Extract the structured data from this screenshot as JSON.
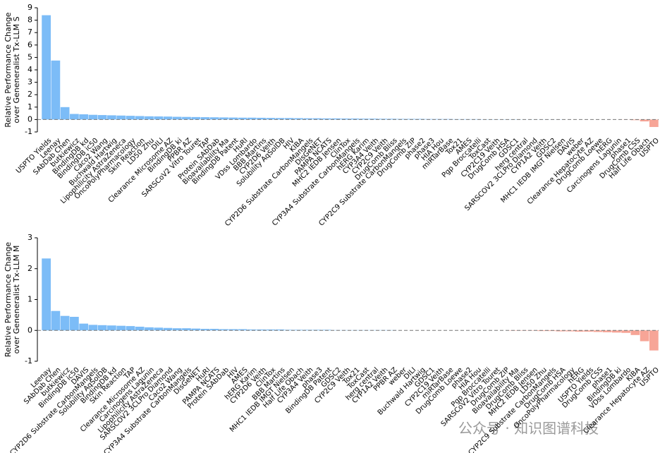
{
  "chart_data": [
    {
      "type": "bar",
      "ylabel": [
        "Relative Performance Change",
        "over Geneneralist Tx-LLM S"
      ],
      "categories": [
        "USPTO Yields",
        "Leenay",
        "SAbDab Chen",
        "butkiewicz",
        "BindingDB kd",
        "BindingDB ic50",
        "Caco2 Wang",
        "Buchwald Hartwig",
        "Lipophilicity AstraZeneca",
        "OncoPolyPharmacology",
        "Skin Reaction",
        "LD50 Zhu",
        "DILI",
        "Clearance Microsome AZ",
        "BindingDB ki",
        "PPBR AZ",
        "SARSCoV2 Vitro Touret",
        "TAP",
        "Protein SAbDab",
        "Bioavailability Ma",
        "BindingDB Patent",
        "HuRI",
        "VDss Lombardo",
        "BBB Martins",
        "CYP2D6 Veith",
        "Solubility AqSolDB",
        "HIV",
        "KIBA",
        "CYP2D6 Substrate CarbonMangels",
        "DisGeNET",
        "PAMPA NCATS",
        "MHC2 IEDB Jensen",
        "ClinTox",
        "CYP3A4 Substrate CarbonMangels",
        "hERG Karim",
        "CYP3A4 Veith",
        "CYP2C9 Veith",
        "DrugComb Bliss",
        "CYP2C9 Substrate CarbonMangels",
        "DrugComb ZIP",
        "phase2",
        "phase3",
        "HIA Hou",
        "miRTarBase",
        "Tox21",
        "AMES",
        "Pgp Broccatelli",
        "ToxCast",
        "CYP2C19 Veith",
        "DrugComb HSA",
        "GDSC1",
        "herg central",
        "SARSCOV2 3CLPro Diamond",
        "CYP1A2 Veith",
        "GDSC2",
        "MHC1 IEDB IMGT Nielsen",
        "DAVIS",
        "weber",
        "Clearance Hepatocyte AZ",
        "DrugComb Loewe",
        "hERG",
        "Carcinogens Lagunin",
        "phase1",
        "DrugComb CSS",
        "Half Life Obach",
        "USPTO"
      ],
      "values": [
        8.4,
        4.75,
        1.0,
        0.45,
        0.42,
        0.38,
        0.36,
        0.34,
        0.32,
        0.3,
        0.28,
        0.26,
        0.25,
        0.24,
        0.22,
        0.21,
        0.2,
        0.19,
        0.18,
        0.17,
        0.16,
        0.15,
        0.15,
        0.14,
        0.13,
        0.12,
        0.12,
        0.11,
        0.1,
        0.1,
        0.09,
        0.09,
        0.08,
        0.08,
        0.07,
        0.07,
        0.06,
        0.06,
        0.05,
        0.05,
        0.05,
        0.04,
        0.04,
        0.04,
        0.03,
        0.03,
        0.03,
        0.02,
        0.02,
        0.02,
        0.02,
        0.01,
        0.01,
        0.01,
        0.01,
        0.01,
        0,
        0,
        0,
        0,
        0,
        0,
        -0.01,
        -0.05,
        -0.15,
        -0.6
      ],
      "positive_color": "#7cbcf7",
      "negative_color": "#f7a597",
      "ylim": [
        -1,
        9
      ],
      "yticks": [
        -1,
        0,
        1,
        2,
        3,
        4,
        5,
        6,
        7,
        8,
        9
      ]
    },
    {
      "type": "bar",
      "ylabel": [
        "Relative Performance Change",
        "over Geneneralist Tx-LLM M"
      ],
      "categories": [
        "Leenay",
        "SAbDab Chen",
        "butkiewicz",
        "BindingDB ic50",
        "DAVIS",
        "CYP2D6 Substrate CarbonMangels",
        "Solubility AqSolDB",
        "BindingDB kd",
        "Skin Reaction",
        "TAP",
        "Clearance Microsome AZ",
        "Carcinogens Lagunin",
        "Lipophilicity AstraZeneca",
        "SARSCOV2 3CLPro Diamond",
        "Caco2 Wang",
        "CYP3A4 Substrate CarbonMangels",
        "DisGeNET",
        "HuRI",
        "PAMPA NCATS",
        "Protein SAbDab",
        "HIV",
        "AMES",
        "hERG Karim",
        "CYP2D6 Veith",
        "ClinTox",
        "BBB Martins",
        "MHC1 IEDB IMGT Nielsen",
        "Half Life Obach",
        "CYP3A4 Veith",
        "phase3",
        "BindingDB Patent",
        "GDSC2",
        "CYP2C9 Veith",
        "Tox21",
        "ToxCast",
        "herg central",
        "CYP1A2 Veith",
        "PPBR AZ",
        "weber",
        "DILI",
        "Buchwald Hartwig",
        "GDSC1",
        "CYP2C19 Veith",
        "miRTarBase",
        "DrugComb Loewe",
        "phase2",
        "HIA Hou",
        "Pgp Broccatelli",
        "SARSCoV2 Vitro Touret",
        "DrugComb ZIP",
        "Bioavailability Ma",
        "DrugComb Bliss",
        "MHC2 IEDB Jensen",
        "LD50 Zhu",
        "CYP2C9 Substrate CarbonMangels",
        "DrugComb HSA",
        "OncoPolyPharmacology",
        "hERG",
        "USPTO Yields",
        "DrugComb CSS",
        "phase1",
        "BindingDB ki",
        "VDss Lombardo",
        "KIBA",
        "Clearance Hepatocyte AZ",
        "USPTO"
      ],
      "values": [
        2.33,
        0.63,
        0.47,
        0.44,
        0.22,
        0.18,
        0.17,
        0.16,
        0.15,
        0.14,
        0.12,
        0.1,
        0.09,
        0.08,
        0.07,
        0.07,
        0.06,
        0.05,
        0.05,
        0.04,
        0.04,
        0.04,
        0.03,
        0.03,
        0.03,
        0.03,
        0.02,
        0.02,
        0.02,
        0.02,
        0.02,
        0.01,
        0.01,
        0.01,
        0.01,
        0.01,
        0.01,
        0.01,
        0,
        0,
        0,
        0,
        0,
        0,
        0,
        0,
        0,
        0,
        0,
        0,
        -0.01,
        -0.01,
        -0.01,
        -0.02,
        -0.02,
        -0.03,
        -0.03,
        -0.04,
        -0.04,
        -0.05,
        -0.06,
        -0.07,
        -0.08,
        -0.15,
        -0.35,
        -0.65
      ],
      "positive_color": "#7cbcf7",
      "negative_color": "#f7a597",
      "ylim": [
        -1,
        3
      ],
      "yticks": [
        -1,
        0,
        1,
        2,
        3
      ]
    }
  ],
  "watermark": "公众号 · 知识图谱科技"
}
